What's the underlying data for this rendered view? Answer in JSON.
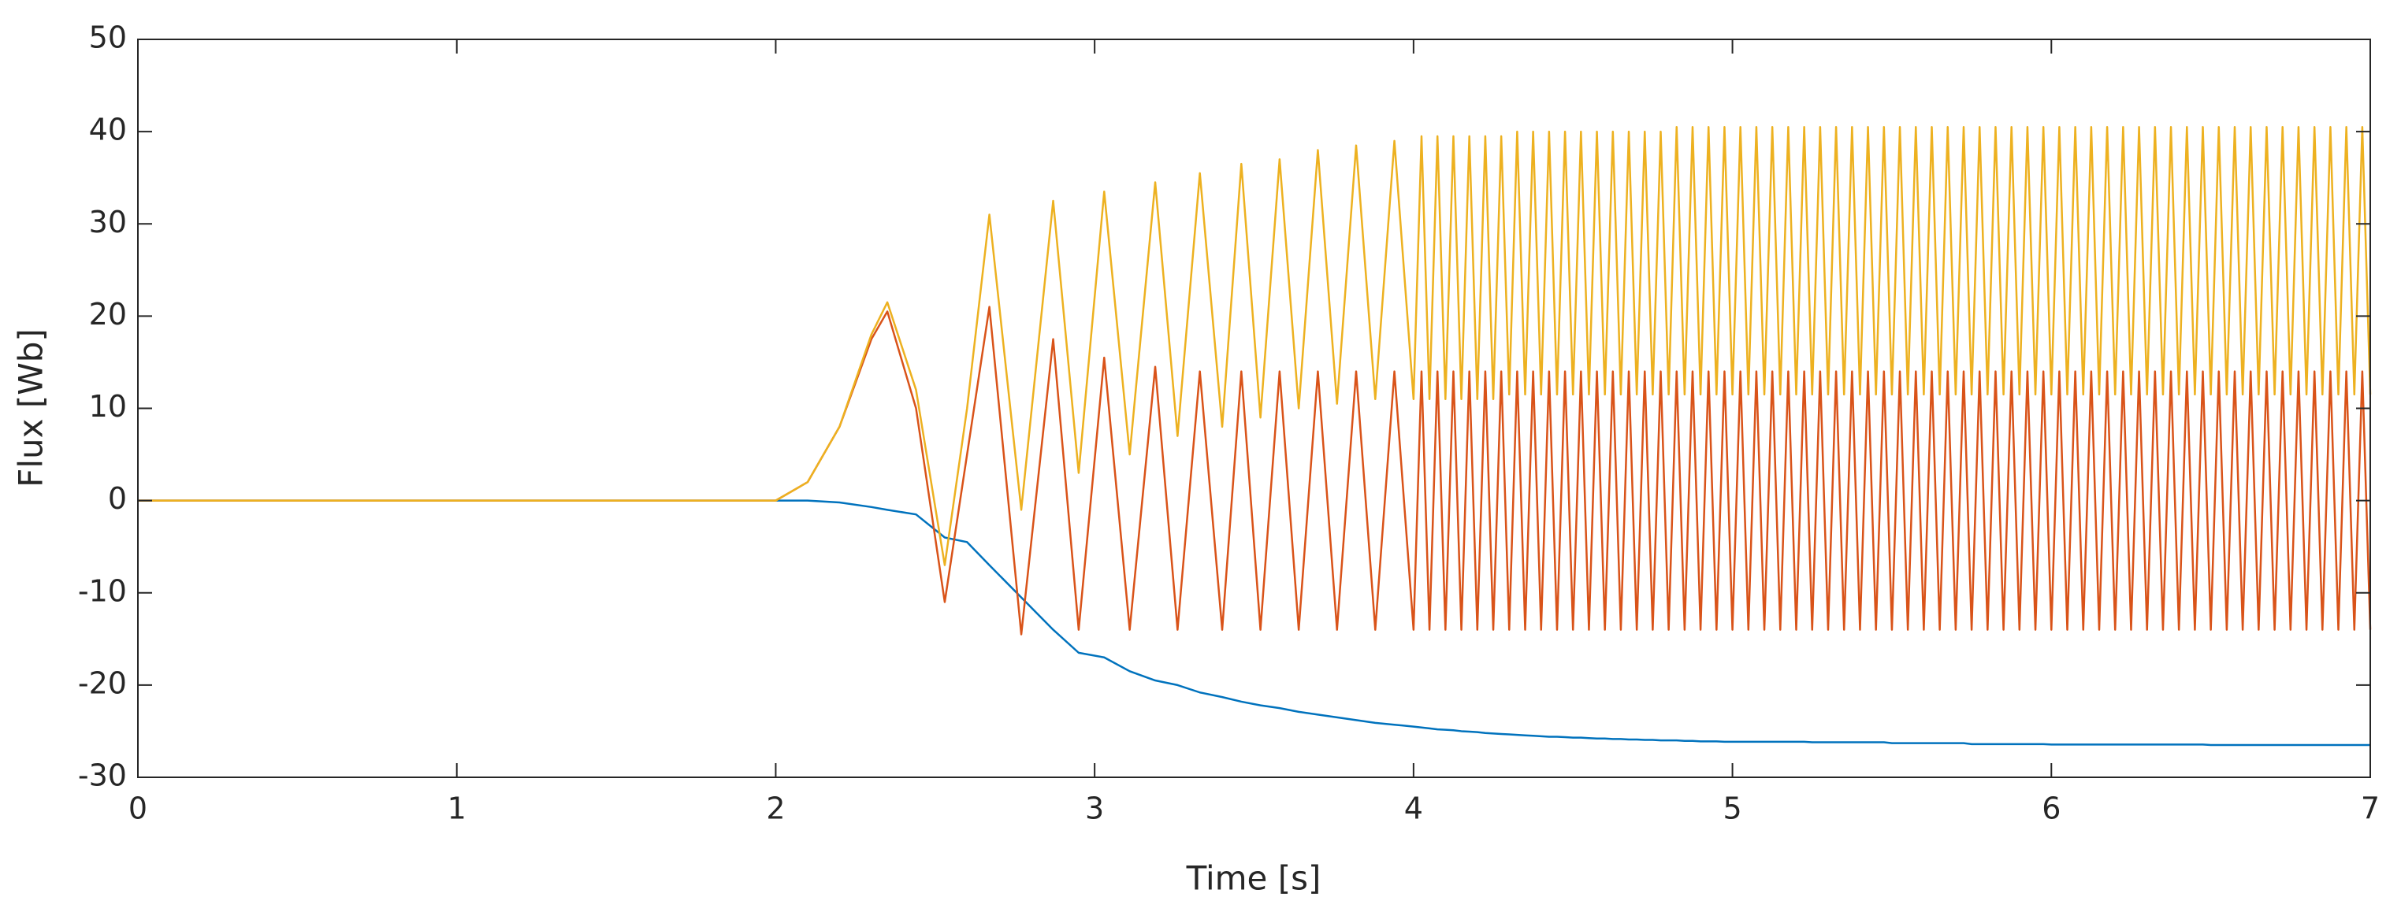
{
  "chart_data": {
    "type": "line",
    "xlabel": "Time [s]",
    "ylabel": "Flux [Wb]",
    "xlim": [
      0,
      7
    ],
    "xticks": [
      0,
      1,
      2,
      3,
      4,
      5,
      6,
      7
    ],
    "ylim": [
      -30,
      50
    ],
    "yticks": [
      -30,
      -20,
      -10,
      0,
      10,
      20,
      30,
      40,
      50
    ],
    "grid": false,
    "x": [
      0,
      2,
      2.1,
      2.2,
      2.3,
      2.35,
      2.44,
      2.53,
      2.6,
      2.67,
      2.77,
      2.87,
      2.95,
      3.03,
      3.11,
      3.19,
      3.26,
      3.33,
      3.4,
      3.46,
      3.52,
      3.58,
      3.64,
      3.7,
      3.76,
      3.82,
      3.88,
      3.94,
      4,
      4.025,
      4.05,
      4.075,
      4.1,
      4.125,
      4.15,
      4.175,
      4.2,
      4.225,
      4.25,
      4.275,
      4.3,
      4.325,
      4.35,
      4.375,
      4.4,
      4.425,
      4.45,
      4.475,
      4.5,
      4.525,
      4.55,
      4.575,
      4.6,
      4.625,
      4.65,
      4.675,
      4.7,
      4.725,
      4.75,
      4.775,
      4.8,
      4.825,
      4.85,
      4.875,
      4.9,
      4.925,
      4.95,
      4.975,
      5,
      5.025,
      5.05,
      5.075,
      5.1,
      5.125,
      5.15,
      5.175,
      5.2,
      5.225,
      5.25,
      5.275,
      5.3,
      5.325,
      5.35,
      5.375,
      5.4,
      5.425,
      5.45,
      5.475,
      5.5,
      5.525,
      5.55,
      5.575,
      5.6,
      5.625,
      5.65,
      5.675,
      5.7,
      5.725,
      5.75,
      5.775,
      5.8,
      5.825,
      5.85,
      5.875,
      5.9,
      5.925,
      5.95,
      5.975,
      6,
      6.025,
      6.05,
      6.075,
      6.1,
      6.125,
      6.15,
      6.175,
      6.2,
      6.225,
      6.25,
      6.275,
      6.3,
      6.325,
      6.35,
      6.375,
      6.4,
      6.425,
      6.45,
      6.475,
      6.5,
      6.525,
      6.55,
      6.575,
      6.6,
      6.625,
      6.65,
      6.675,
      6.7,
      6.725,
      6.75,
      6.775,
      6.8,
      6.825,
      6.85,
      6.875,
      6.9,
      6.925,
      6.95,
      6.975,
      7
    ],
    "series": [
      {
        "color": "#0072BD",
        "values": [
          0,
          0,
          0,
          -0.2,
          -0.7,
          -1,
          -1.5,
          -4,
          -4.5,
          -7,
          -10.5,
          -14,
          -16.5,
          -17,
          -18.5,
          -19.5,
          -20,
          -20.8,
          -21.3,
          -21.8,
          -22.2,
          -22.5,
          -22.9,
          -23.2,
          -23.5,
          -23.8,
          -24.1,
          -24.3,
          -24.5,
          -24.6,
          -24.7,
          -24.8,
          -24.85,
          -24.9,
          -25,
          -25.05,
          -25.1,
          -25.2,
          -25.25,
          -25.3,
          -25.35,
          -25.4,
          -25.45,
          -25.5,
          -25.55,
          -25.6,
          -25.6,
          -25.65,
          -25.7,
          -25.7,
          -25.75,
          -25.8,
          -25.8,
          -25.85,
          -25.85,
          -25.9,
          -25.9,
          -25.95,
          -25.95,
          -26,
          -26,
          -26,
          -26.05,
          -26.05,
          -26.1,
          -26.1,
          -26.1,
          -26.15,
          -26.15,
          -26.15,
          -26.15,
          -26.15,
          -26.15,
          -26.15,
          -26.15,
          -26.15,
          -26.15,
          -26.15,
          -26.2,
          -26.2,
          -26.2,
          -26.2,
          -26.2,
          -26.2,
          -26.2,
          -26.2,
          -26.2,
          -26.2,
          -26.3,
          -26.3,
          -26.3,
          -26.3,
          -26.3,
          -26.3,
          -26.3,
          -26.3,
          -26.3,
          -26.3,
          -26.4,
          -26.4,
          -26.4,
          -26.4,
          -26.4,
          -26.4,
          -26.4,
          -26.4,
          -26.4,
          -26.4,
          -26.45,
          -26.45,
          -26.45,
          -26.45,
          -26.45,
          -26.45,
          -26.45,
          -26.45,
          -26.45,
          -26.45,
          -26.45,
          -26.45,
          -26.45,
          -26.45,
          -26.45,
          -26.45,
          -26.45,
          -26.45,
          -26.45,
          -26.45,
          -26.5,
          -26.5,
          -26.5,
          -26.5,
          -26.5,
          -26.5,
          -26.5,
          -26.5,
          -26.5,
          -26.5,
          -26.5,
          -26.5,
          -26.5,
          -26.5,
          -26.5,
          -26.5,
          -26.5,
          -26.5,
          -26.5,
          -26.5,
          -26.5
        ]
      },
      {
        "color": "#D95319",
        "values": [
          0,
          0,
          2,
          8,
          17.5,
          20.5,
          10,
          -11,
          5,
          21,
          -14.5,
          17.5,
          -14,
          15.5,
          -14,
          14.5,
          -14,
          14,
          -14,
          14,
          -14,
          14,
          -14,
          14,
          -14,
          14,
          -14,
          14,
          -14,
          14,
          -14,
          14,
          -14,
          14,
          -14,
          14,
          -14,
          14,
          -14,
          14,
          -14,
          14,
          -14,
          14,
          -14,
          14,
          -14,
          14,
          -14,
          14,
          -14,
          14,
          -14,
          14,
          -14,
          14,
          -14,
          14,
          -14,
          14,
          -14,
          14,
          -14,
          14,
          -14,
          14,
          -14,
          14,
          -14,
          14,
          -14,
          14,
          -14,
          14,
          -14,
          14,
          -14,
          14,
          -14,
          14,
          -14,
          14,
          -14,
          14,
          -14,
          14,
          -14,
          14,
          -14,
          14,
          -14,
          14,
          -14,
          14,
          -14,
          14,
          -14,
          14,
          -14,
          14,
          -14,
          14,
          -14,
          14,
          -14,
          14,
          -14,
          14,
          -14,
          14,
          -14,
          14,
          -14,
          14,
          -14,
          14,
          -14,
          14,
          -14,
          14,
          -14,
          14,
          -14,
          14,
          -14,
          14,
          -14,
          14,
          -14,
          14,
          -14,
          14,
          -14,
          14,
          -14,
          14,
          -14,
          14,
          -14,
          14,
          -14,
          14,
          -14,
          14,
          -14,
          14,
          -14,
          14,
          -14
        ]
      },
      {
        "color": "#EDB120",
        "values": [
          0,
          0,
          2,
          8,
          18,
          21.5,
          12,
          -7,
          10,
          31,
          -1,
          32.5,
          3,
          33.5,
          5,
          34.5,
          7,
          35.5,
          8,
          36.5,
          9,
          37,
          10,
          38,
          10.5,
          38.5,
          11,
          39,
          11,
          39.5,
          11,
          39.5,
          11,
          39.5,
          11,
          39.5,
          11,
          39.5,
          11,
          39.5,
          11.5,
          40,
          11.5,
          40,
          11.5,
          40,
          11.5,
          40,
          11.5,
          40,
          11.5,
          40,
          11.5,
          40,
          11.5,
          40,
          11.5,
          40,
          11.5,
          40,
          11.5,
          40.5,
          11.5,
          40.5,
          11.5,
          40.5,
          11.5,
          40.5,
          11.5,
          40.5,
          11.5,
          40.5,
          11.5,
          40.5,
          11.5,
          40.5,
          11.5,
          40.5,
          11.5,
          40.5,
          11.5,
          40.5,
          11.5,
          40.5,
          11.5,
          40.5,
          11.5,
          40.5,
          11.5,
          40.5,
          11.5,
          40.5,
          11.5,
          40.5,
          11.5,
          40.5,
          11.5,
          40.5,
          11.5,
          40.5,
          11.5,
          40.5,
          11.5,
          40.5,
          11.5,
          40.5,
          11.5,
          40.5,
          11.5,
          40.5,
          11.5,
          40.5,
          11.5,
          40.5,
          11.5,
          40.5,
          11.5,
          40.5,
          11.5,
          40.5,
          11.5,
          40.5,
          11.5,
          40.5,
          11.5,
          40.5,
          11.5,
          40.5,
          11.5,
          40.5,
          11.5,
          40.5,
          11.5,
          40.5,
          11.5,
          40.5,
          11.5,
          40.5,
          11.5,
          40.5,
          11.5,
          40.5,
          11.5,
          40.5,
          11.5,
          40.5,
          11.5,
          40.5,
          11.5
        ]
      }
    ]
  }
}
